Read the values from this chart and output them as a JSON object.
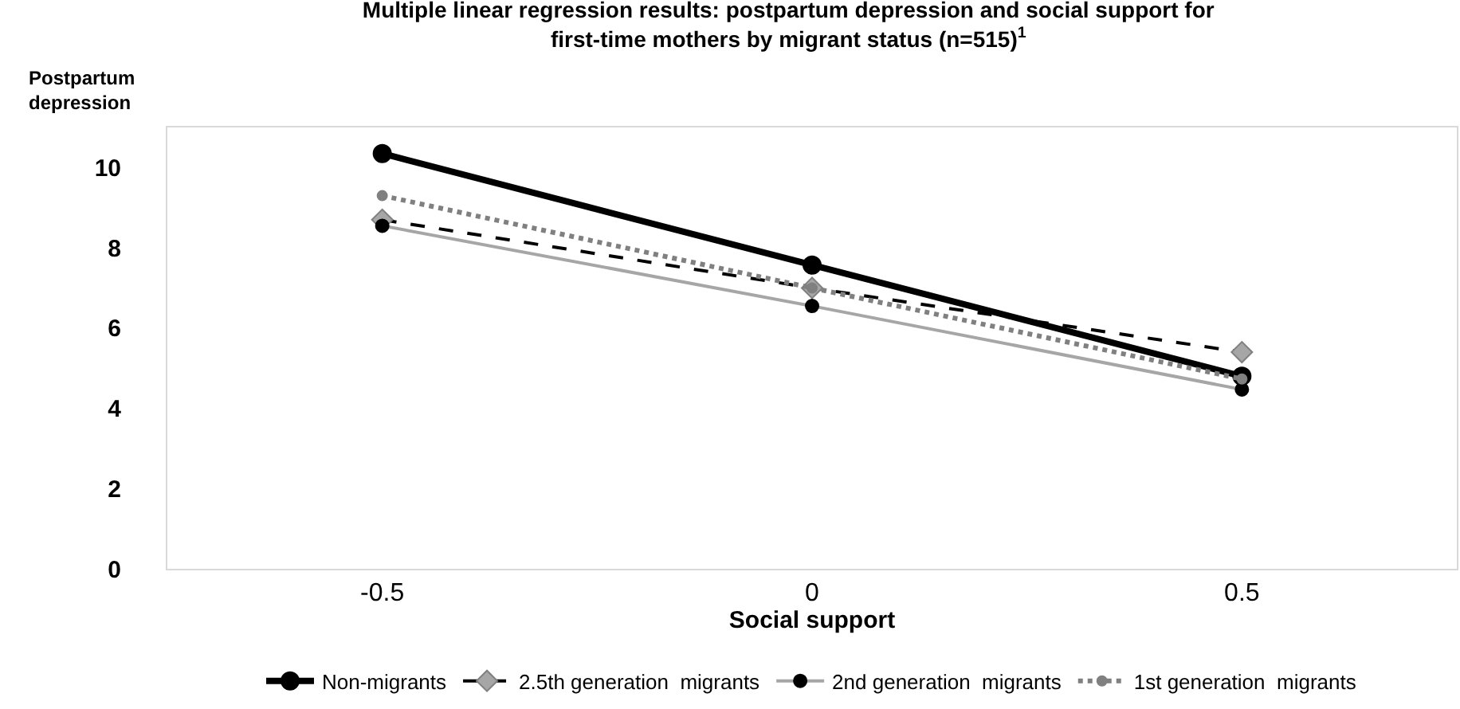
{
  "chart_data": {
    "type": "line",
    "title": "Multiple linear regression results: postpartum depression and social support for\nfirst-time mothers by migrant status (n=515)$^{1}$",
    "xlabel": "Social support",
    "ylabel": "Postpartum\ndepression",
    "x": [
      -0.5,
      0,
      0.5
    ],
    "xlim": [
      -0.75,
      0.75
    ],
    "xticks": [
      -0.5,
      0,
      0.5
    ],
    "ylim": [
      0,
      11
    ],
    "yticks": [
      0,
      2,
      4,
      6,
      8,
      10
    ],
    "legend": "bottom",
    "series": [
      {
        "name": "Non-migrants",
        "color": "#000000",
        "values": [
          10.35,
          7.57,
          4.8
        ],
        "line_style": "solid",
        "marker": "circle"
      },
      {
        "name": "2.5th generation  migrants",
        "color": "#000000",
        "values": [
          8.7,
          7.0,
          5.4
        ],
        "line_style": "dashed",
        "marker": "diamond"
      },
      {
        "name": "2nd generation  migrants",
        "color": "#a6a6a6",
        "values": [
          8.55,
          6.55,
          4.47
        ],
        "line_style": "solid",
        "marker": "circle"
      },
      {
        "name": "1st generation  migrants",
        "color": "#808080",
        "values": [
          9.3,
          7.0,
          4.73
        ],
        "line_style": "dotted",
        "marker": "circle"
      }
    ]
  }
}
